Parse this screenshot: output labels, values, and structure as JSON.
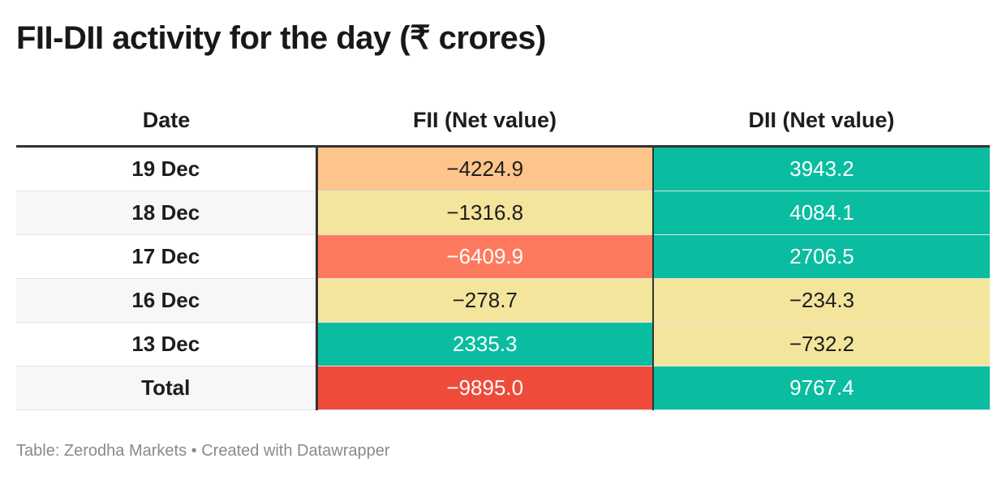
{
  "title": "FII-DII activity for the day (₹ crores)",
  "colors": {
    "strong_negative": "#ef4b3b",
    "negative": "#fe7a5f",
    "mild_negative": "#fec58a",
    "neutral": "#f3e59c",
    "positive": "#0abda0"
  },
  "chart_data": {
    "type": "table",
    "title": "FII-DII activity for the day (₹ crores)",
    "columns": [
      "Date",
      "FII (Net value)",
      "DII (Net value)"
    ],
    "rows": [
      {
        "date": "19 Dec",
        "fii": "−4224.9",
        "dii": "3943.2",
        "fii_color": "#fec58a",
        "dii_color": "#0abda0",
        "fii_text": "dark",
        "dii_text": "light"
      },
      {
        "date": "18 Dec",
        "fii": "−1316.8",
        "dii": "4084.1",
        "fii_color": "#f3e59c",
        "dii_color": "#0abda0",
        "fii_text": "dark",
        "dii_text": "light"
      },
      {
        "date": "17 Dec",
        "fii": "−6409.9",
        "dii": "2706.5",
        "fii_color": "#fe7a5f",
        "dii_color": "#0abda0",
        "fii_text": "light",
        "dii_text": "light"
      },
      {
        "date": "16 Dec",
        "fii": "−278.7",
        "dii": "−234.3",
        "fii_color": "#f3e59c",
        "dii_color": "#f3e59c",
        "fii_text": "dark",
        "dii_text": "dark"
      },
      {
        "date": "13 Dec",
        "fii": "2335.3",
        "dii": "−732.2",
        "fii_color": "#0abda0",
        "dii_color": "#f3e59c",
        "fii_text": "light",
        "dii_text": "dark"
      },
      {
        "date": "Total",
        "fii": "−9895.0",
        "dii": "9767.4",
        "fii_color": "#ef4b3b",
        "dii_color": "#0abda0",
        "fii_text": "light",
        "dii_text": "light"
      }
    ]
  },
  "footer": "Table: Zerodha Markets • Created with Datawrapper"
}
